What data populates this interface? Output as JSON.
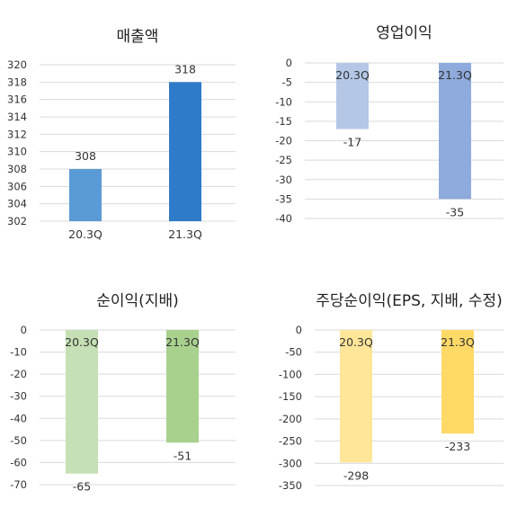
{
  "chart_data": [
    {
      "type": "bar",
      "title": "매출액",
      "categories": [
        "20.3Q",
        "21.3Q"
      ],
      "values": [
        308,
        318
      ],
      "data_labels": [
        "308",
        "318"
      ],
      "ylim": [
        302,
        320
      ],
      "yticks": [
        302,
        304,
        306,
        308,
        310,
        312,
        314,
        316,
        318,
        320
      ],
      "ytick_labels": [
        "302",
        "304",
        "306",
        "308",
        "310",
        "312",
        "314",
        "316",
        "318",
        "320"
      ],
      "colors": [
        "#5b9bd5",
        "#2e7bc9"
      ],
      "category_axis": "bottom",
      "grid": true
    },
    {
      "type": "bar",
      "title": "영업이익",
      "categories": [
        "20.3Q",
        "21.3Q"
      ],
      "values": [
        -17,
        -35
      ],
      "data_labels": [
        "-17",
        "-35"
      ],
      "ylim": [
        -40,
        0
      ],
      "yticks": [
        0,
        -5,
        -10,
        -15,
        -20,
        -25,
        -30,
        -35,
        -40
      ],
      "ytick_labels": [
        "0",
        "-5",
        "-10",
        "-15",
        "-20",
        "-25",
        "-30",
        "-35",
        "-40"
      ],
      "colors": [
        "#b4c7e7",
        "#8faadc"
      ],
      "category_axis": "top",
      "grid": true
    },
    {
      "type": "bar",
      "title": "순이익(지배)",
      "categories": [
        "20.3Q",
        "21.3Q"
      ],
      "values": [
        -65,
        -51
      ],
      "data_labels": [
        "-65",
        "-51"
      ],
      "ylim": [
        -70,
        0
      ],
      "yticks": [
        0,
        -10,
        -20,
        -30,
        -40,
        -50,
        -60,
        -70
      ],
      "ytick_labels": [
        "0",
        "-10",
        "-20",
        "-30",
        "-40",
        "-50",
        "-60",
        "-70"
      ],
      "colors": [
        "#c5e0b4",
        "#a9d18e"
      ],
      "category_axis": "top",
      "grid": true
    },
    {
      "type": "bar",
      "title": "주당순이익(EPS, 지배, 수정)",
      "categories": [
        "20.3Q",
        "21.3Q"
      ],
      "values": [
        -298,
        -233
      ],
      "data_labels": [
        "-298",
        "-233"
      ],
      "ylim": [
        -350,
        0
      ],
      "yticks": [
        0,
        -50,
        -100,
        -150,
        -200,
        -250,
        -300,
        -350
      ],
      "ytick_labels": [
        "0",
        "-50",
        "-100",
        "-150",
        "-200",
        "-250",
        "-300",
        "-350"
      ],
      "colors": [
        "#ffe699",
        "#ffd966"
      ],
      "category_axis": "top",
      "grid": true
    }
  ]
}
